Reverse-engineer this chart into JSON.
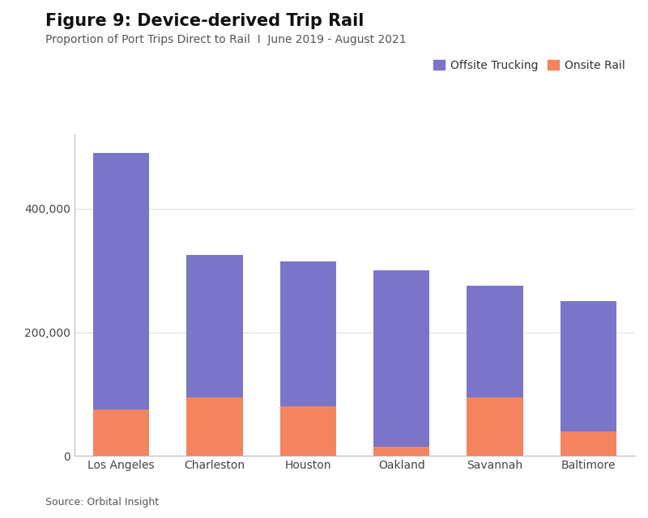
{
  "title": "Figure 9: Device-derived Trip Rail",
  "subtitle": "Proportion of Port Trips Direct to Rail  I  June 2019 - August 2021",
  "categories": [
    "Los Angeles",
    "Charleston",
    "Houston",
    "Oakland",
    "Savannah",
    "Baltimore"
  ],
  "onsite_rail": [
    75000,
    95000,
    80000,
    15000,
    95000,
    40000
  ],
  "offsite_trucking": [
    415000,
    230000,
    235000,
    285000,
    180000,
    210000
  ],
  "offsite_color": "#7b75c9",
  "onsite_color": "#f4845f",
  "background_color": "#ffffff",
  "grid_color": "#e0e0e0",
  "ylim": [
    0,
    520000
  ],
  "yticks": [
    0,
    200000,
    400000
  ],
  "legend_offsite": "Offsite Trucking",
  "legend_onsite": "Onsite Rail",
  "source_text": "Source: Orbital Insight",
  "title_fontsize": 15,
  "subtitle_fontsize": 10,
  "axis_fontsize": 9,
  "legend_fontsize": 10,
  "bar_width": 0.6
}
